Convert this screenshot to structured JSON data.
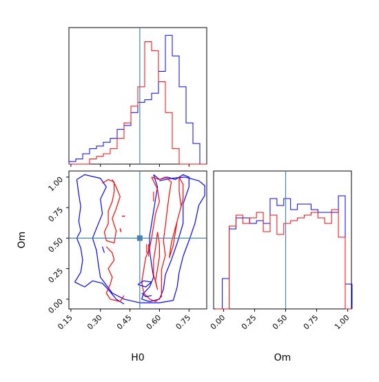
{
  "chart_data": {
    "type": "corner",
    "parameters": [
      "H0",
      "Om"
    ],
    "truth": {
      "H0": 0.5,
      "Om": 0.5
    },
    "truth_color": "#4682b4",
    "series": [
      {
        "color": "#0000ff"
      },
      {
        "color": "#ff0000"
      }
    ],
    "panels": {
      "h0_hist": {
        "xlim": [
          0.14,
          0.84
        ],
        "ticks": [
          0.15,
          0.3,
          0.45,
          0.6,
          0.75
        ],
        "bin_edges": [
          0.14,
          0.1575,
          0.175,
          0.1925,
          0.21,
          0.2275,
          0.245,
          0.2625,
          0.28,
          0.2975,
          0.315,
          0.3325,
          0.35,
          0.3675,
          0.385,
          0.4025,
          0.42,
          0.4375,
          0.455,
          0.4725,
          0.49,
          0.5075,
          0.525,
          0.5425,
          0.56,
          0.5775,
          0.595,
          0.6125,
          0.63,
          0.6475,
          0.665,
          0.6825,
          0.7,
          0.7175,
          0.735,
          0.7525,
          0.77,
          0.7875,
          0.805,
          0.8225,
          0.84
        ],
        "blue_counts": [
          2,
          2,
          4,
          4,
          8,
          8,
          12,
          12,
          14,
          14,
          17,
          17,
          20,
          20,
          27,
          27,
          30,
          30,
          40,
          40,
          48,
          48,
          50,
          50,
          55,
          55,
          72,
          72,
          100,
          100,
          84,
          84,
          60,
          60,
          32,
          32,
          16,
          16,
          0,
          0
        ],
        "red_counts": [
          0,
          0,
          0,
          0,
          0,
          0,
          4,
          4,
          6,
          6,
          8,
          8,
          12,
          12,
          20,
          20,
          32,
          32,
          45,
          45,
          60,
          60,
          95,
          95,
          88,
          88,
          64,
          64,
          40,
          40,
          12,
          12,
          0,
          0,
          0,
          0,
          0,
          0,
          0,
          0
        ],
        "ymax": 106
      },
      "om_hist": {
        "xlim": [
          -0.08,
          1.03
        ],
        "ticks": [
          0.0,
          0.25,
          0.5,
          0.75,
          1.0
        ],
        "tick_labels": [
          "0.00",
          "0.25",
          "0.50",
          "0.75",
          "1.00"
        ],
        "bin_edges": [
          -0.065,
          -0.01,
          0.045,
          0.1,
          0.155,
          0.21,
          0.265,
          0.32,
          0.375,
          0.43,
          0.485,
          0.54,
          0.595,
          0.65,
          0.705,
          0.76,
          0.815,
          0.87,
          0.925,
          0.98,
          1.035
        ],
        "blue_counts": [
          0,
          22,
          58,
          66,
          66,
          62,
          64,
          62,
          80,
          75,
          80,
          72,
          76,
          76,
          72,
          70,
          70,
          70,
          82,
          18
        ],
        "red_counts": [
          0,
          0,
          60,
          68,
          62,
          66,
          70,
          56,
          68,
          54,
          62,
          64,
          66,
          68,
          70,
          66,
          62,
          72,
          52,
          0
        ],
        "ymax": 100
      },
      "joint": {
        "xlim": [
          0.14,
          0.84
        ],
        "ylim": [
          -0.08,
          1.05
        ],
        "xticks": [
          0.15,
          0.3,
          0.45,
          0.6,
          0.75
        ],
        "xtick_labels": [
          "0.15",
          "0.30",
          "0.45",
          "0.60",
          "0.75"
        ],
        "yticks": [
          0.0,
          0.25,
          0.5,
          0.75,
          1.0
        ],
        "ytick_labels": [
          "0.00",
          "0.25",
          "0.50",
          "0.75",
          "1.00"
        ]
      }
    },
    "xlabel_left": "H0",
    "xlabel_right": "Om",
    "ylabel_joint": "Om"
  }
}
